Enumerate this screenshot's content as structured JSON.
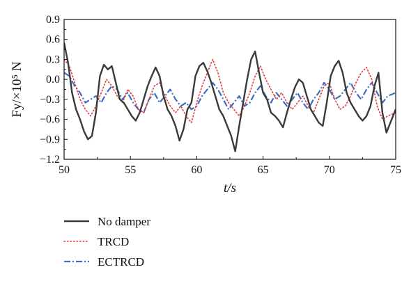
{
  "chart_data": {
    "type": "line",
    "xlabel": "t/s",
    "ylabel": "Fy/×10⁵ N",
    "xlim": [
      50,
      75
    ],
    "ylim": [
      -1.2,
      0.9
    ],
    "x_ticks": [
      50,
      55,
      60,
      65,
      70,
      75
    ],
    "y_ticks": [
      -1.2,
      -0.9,
      -0.6,
      -0.3,
      0.0,
      0.3,
      0.6,
      0.9
    ],
    "x_tick_labels": [
      "50",
      "55",
      "60",
      "65",
      "70",
      "75"
    ],
    "y_tick_labels": [
      "−1.2",
      "−0.9",
      "−0.6",
      "−0.3",
      "0.0",
      "0.3",
      "0.6",
      "0.9"
    ],
    "grid": false,
    "legend_position": "bottom-left, below plot",
    "series": [
      {
        "name": "No damper",
        "color": "#3a3a3a",
        "linestyle": "solid",
        "x": [
          50.0,
          50.3,
          50.6,
          50.9,
          51.2,
          51.5,
          51.8,
          52.1,
          52.4,
          52.7,
          53.0,
          53.3,
          53.6,
          53.9,
          54.2,
          54.5,
          54.8,
          55.1,
          55.4,
          55.7,
          56.0,
          56.3,
          56.6,
          56.9,
          57.2,
          57.5,
          57.8,
          58.1,
          58.4,
          58.7,
          59.0,
          59.3,
          59.6,
          59.9,
          60.2,
          60.5,
          60.8,
          61.1,
          61.4,
          61.7,
          62.0,
          62.3,
          62.6,
          62.9,
          63.2,
          63.5,
          63.8,
          64.1,
          64.4,
          64.7,
          65.0,
          65.3,
          65.6,
          65.9,
          66.2,
          66.5,
          66.8,
          67.1,
          67.4,
          67.7,
          68.0,
          68.3,
          68.6,
          68.9,
          69.2,
          69.5,
          69.8,
          70.1,
          70.4,
          70.7,
          71.0,
          71.3,
          71.6,
          71.9,
          72.2,
          72.5,
          72.8,
          73.1,
          73.4,
          73.7,
          74.0,
          74.3,
          74.6,
          75.0
        ],
        "y": [
          0.55,
          0.25,
          -0.2,
          -0.45,
          -0.6,
          -0.78,
          -0.9,
          -0.85,
          -0.5,
          0.05,
          0.22,
          0.15,
          0.2,
          -0.05,
          -0.3,
          -0.35,
          -0.45,
          -0.55,
          -0.62,
          -0.5,
          -0.3,
          -0.1,
          0.05,
          0.18,
          0.05,
          -0.25,
          -0.45,
          -0.55,
          -0.7,
          -0.92,
          -0.75,
          -0.45,
          -0.35,
          0.05,
          0.2,
          0.25,
          0.12,
          -0.05,
          -0.25,
          -0.45,
          -0.55,
          -0.7,
          -0.85,
          -1.08,
          -0.7,
          -0.35,
          0.0,
          0.3,
          0.42,
          0.1,
          -0.2,
          -0.3,
          -0.5,
          -0.55,
          -0.62,
          -0.72,
          -0.5,
          -0.3,
          -0.12,
          0.0,
          -0.05,
          -0.25,
          -0.45,
          -0.55,
          -0.65,
          -0.7,
          -0.35,
          0.05,
          0.2,
          0.28,
          0.1,
          -0.2,
          -0.35,
          -0.45,
          -0.55,
          -0.62,
          -0.55,
          -0.4,
          -0.1,
          0.1,
          -0.5,
          -0.8,
          -0.65,
          -0.45
        ]
      },
      {
        "name": "TRCD",
        "color": "#e83a3a",
        "linestyle": "dotted",
        "x": [
          50.0,
          50.4,
          50.8,
          51.2,
          51.6,
          52.0,
          52.4,
          52.8,
          53.2,
          53.6,
          54.0,
          54.4,
          54.8,
          55.2,
          55.6,
          56.0,
          56.4,
          56.8,
          57.2,
          57.6,
          58.0,
          58.4,
          58.8,
          59.2,
          59.6,
          60.0,
          60.4,
          60.8,
          61.2,
          61.6,
          62.0,
          62.4,
          62.8,
          63.2,
          63.6,
          64.0,
          64.4,
          64.8,
          65.2,
          65.6,
          66.0,
          66.4,
          66.8,
          67.2,
          67.6,
          68.0,
          68.4,
          68.8,
          69.2,
          69.6,
          70.0,
          70.4,
          70.8,
          71.2,
          71.6,
          72.0,
          72.4,
          72.8,
          73.2,
          73.6,
          74.0,
          74.4,
          75.0
        ],
        "y": [
          0.3,
          0.2,
          -0.05,
          -0.3,
          -0.45,
          -0.55,
          -0.4,
          -0.2,
          0.0,
          -0.1,
          -0.25,
          -0.35,
          -0.15,
          -0.25,
          -0.45,
          -0.5,
          -0.3,
          -0.1,
          -0.05,
          -0.25,
          -0.4,
          -0.5,
          -0.4,
          -0.55,
          -0.65,
          -0.35,
          -0.1,
          0.1,
          0.3,
          0.1,
          -0.2,
          -0.35,
          -0.45,
          -0.55,
          -0.4,
          -0.2,
          0.05,
          0.2,
          0.0,
          -0.15,
          -0.3,
          -0.2,
          -0.35,
          -0.45,
          -0.35,
          -0.25,
          -0.4,
          -0.5,
          -0.3,
          -0.1,
          -0.05,
          -0.3,
          -0.45,
          -0.4,
          -0.25,
          -0.05,
          0.1,
          0.18,
          0.0,
          -0.4,
          -0.6,
          -0.55,
          -0.5
        ]
      },
      {
        "name": "ECTRCD",
        "color": "#3a6fc4",
        "linestyle": "dashdot",
        "x": [
          50.0,
          50.4,
          50.8,
          51.2,
          51.6,
          52.0,
          52.4,
          52.8,
          53.2,
          53.6,
          54.0,
          54.4,
          54.8,
          55.2,
          55.6,
          56.0,
          56.4,
          56.8,
          57.2,
          57.6,
          58.0,
          58.4,
          58.8,
          59.2,
          59.6,
          60.0,
          60.4,
          60.8,
          61.2,
          61.6,
          62.0,
          62.4,
          62.8,
          63.2,
          63.6,
          64.0,
          64.4,
          64.8,
          65.2,
          65.6,
          66.0,
          66.4,
          66.8,
          67.2,
          67.6,
          68.0,
          68.4,
          68.8,
          69.2,
          69.6,
          70.0,
          70.4,
          70.8,
          71.2,
          71.6,
          72.0,
          72.4,
          72.8,
          73.2,
          73.6,
          74.0,
          74.4,
          75.0
        ],
        "y": [
          0.1,
          0.05,
          -0.1,
          -0.2,
          -0.35,
          -0.3,
          -0.25,
          -0.35,
          -0.2,
          -0.1,
          -0.15,
          -0.3,
          -0.2,
          -0.35,
          -0.45,
          -0.5,
          -0.3,
          -0.2,
          -0.35,
          -0.25,
          -0.15,
          -0.3,
          -0.4,
          -0.35,
          -0.45,
          -0.4,
          -0.25,
          -0.15,
          -0.05,
          -0.15,
          -0.3,
          -0.45,
          -0.35,
          -0.25,
          -0.4,
          -0.35,
          -0.2,
          -0.1,
          -0.25,
          -0.35,
          -0.2,
          -0.3,
          -0.4,
          -0.3,
          -0.2,
          -0.35,
          -0.45,
          -0.3,
          -0.2,
          -0.05,
          -0.15,
          -0.3,
          -0.25,
          -0.15,
          -0.05,
          -0.2,
          -0.3,
          -0.15,
          -0.05,
          -0.2,
          -0.35,
          -0.25,
          -0.2
        ]
      }
    ]
  }
}
